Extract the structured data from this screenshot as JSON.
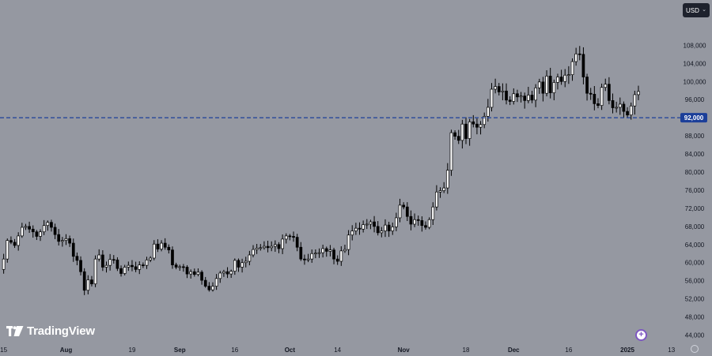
{
  "currency_selector": {
    "label": "USD"
  },
  "brand": {
    "name": "TradingView"
  },
  "colors": {
    "background": "#9598a1",
    "candle_up": "#ffffff",
    "candle_down": "#000000",
    "wick": "#000000",
    "horizontal_line": "#1c3f99",
    "price_label_bg": "#1c3f99"
  },
  "chart_data": {
    "type": "candlestick",
    "title": "",
    "xlabel": "",
    "ylabel": "",
    "ylim": [
      42000,
      118000
    ],
    "yticks": [
      "44,000",
      "48,000",
      "52,000",
      "56,000",
      "60,000",
      "64,000",
      "68,000",
      "72,000",
      "76,000",
      "80,000",
      "84,000",
      "88,000",
      "92,000",
      "96,000",
      "100,000",
      "104,000",
      "108,000"
    ],
    "x_range": [
      "2024-07-14",
      "2025-01-15"
    ],
    "xticks": [
      {
        "label": "15",
        "date": "2024-07-15"
      },
      {
        "label": "Aug",
        "date": "2024-08-01",
        "bold": true
      },
      {
        "label": "19",
        "date": "2024-08-19"
      },
      {
        "label": "Sep",
        "date": "2024-09-01",
        "bold": true
      },
      {
        "label": "16",
        "date": "2024-09-16"
      },
      {
        "label": "Oct",
        "date": "2024-10-01",
        "bold": true
      },
      {
        "label": "14",
        "date": "2024-10-14"
      },
      {
        "label": "Nov",
        "date": "2024-11-01",
        "bold": true
      },
      {
        "label": "18",
        "date": "2024-11-18"
      },
      {
        "label": "Dec",
        "date": "2024-12-01",
        "bold": true
      },
      {
        "label": "16",
        "date": "2024-12-16"
      },
      {
        "label": "2025",
        "date": "2025-01-01",
        "bold": true
      },
      {
        "label": "13",
        "date": "2025-01-13"
      }
    ],
    "horizontal_line": {
      "value": 92000,
      "label": "92,000",
      "style": "dashed"
    },
    "grid": false,
    "start_date": "2024-07-14",
    "close": [
      58500,
      60800,
      64900,
      64500,
      63800,
      65900,
      67800,
      68000,
      67400,
      66800,
      65800,
      66800,
      68200,
      68900,
      67800,
      66200,
      64700,
      64900,
      65300,
      64300,
      61400,
      60500,
      58000,
      53900,
      56200,
      55300,
      60800,
      61700,
      59000,
      59400,
      60700,
      60600,
      58700,
      57600,
      59000,
      59400,
      59100,
      58500,
      59500,
      59400,
      60600,
      61000,
      64100,
      63000,
      64300,
      63400,
      62800,
      59500,
      59000,
      59100,
      59000,
      57500,
      58000,
      57400,
      57900,
      56100,
      54800,
      54000,
      54800,
      56500,
      57700,
      58000,
      57500,
      58100,
      60500,
      59000,
      60000,
      60300,
      61700,
      62900,
      63200,
      63300,
      63600,
      63300,
      63600,
      64000,
      63100,
      65200,
      65900,
      65800,
      65600,
      63400,
      60800,
      60600,
      60800,
      62000,
      62100,
      62200,
      63100,
      62500,
      62800,
      60800,
      60300,
      62600,
      62900,
      66100,
      67000,
      67600,
      67400,
      68400,
      68500,
      69000,
      68000,
      66600,
      67000,
      68300,
      67000,
      67900,
      69900,
      72700,
      72300,
      70200,
      68500,
      69500,
      69300,
      68200,
      67800,
      69500,
      72300,
      75600,
      75900,
      76500,
      80400,
      88700,
      87900,
      87000,
      90600,
      87400,
      91100,
      90600,
      89900,
      90500,
      92300,
      94300,
      98300,
      98900,
      97700,
      97900,
      95900,
      95600,
      97300,
      96600,
      96800,
      95800,
      97000,
      95900,
      98600,
      99900,
      97400,
      101200,
      97500,
      99800,
      101000,
      100000,
      101400,
      101500,
      104400,
      106100,
      106000,
      101000,
      97400,
      97200,
      95100,
      94700,
      98700,
      99400,
      95800,
      94200,
      94300,
      95000,
      93400,
      92600,
      94600,
      97100,
      97800
    ]
  }
}
